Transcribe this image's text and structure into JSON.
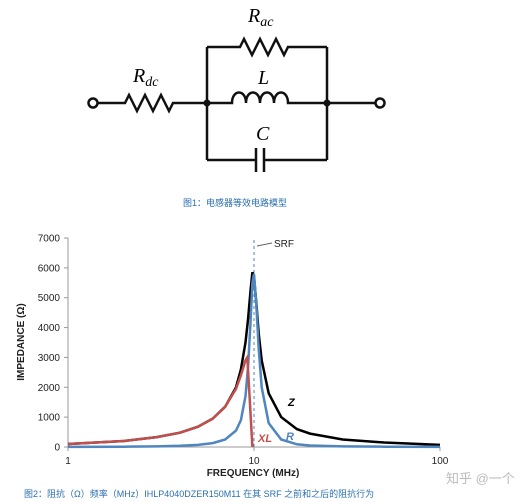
{
  "diagram": {
    "components": [
      {
        "symbol": "R",
        "subscript": "ac"
      },
      {
        "symbol": "R",
        "subscript": "dc"
      },
      {
        "symbol": "L"
      },
      {
        "symbol": "C"
      }
    ],
    "caption": "图1：电感器等效电路模型"
  },
  "chart_data": {
    "type": "line",
    "x_label": "FREQUENCY (MHz)",
    "y_label": "IMPEDANCE (Ω)",
    "xlim": [
      1,
      100
    ],
    "xticks": [
      1,
      10,
      100
    ],
    "x_log": true,
    "ylim": [
      0,
      7000
    ],
    "yticks": [
      0,
      1000,
      2000,
      3000,
      4000,
      5000,
      6000,
      7000
    ],
    "grid": false,
    "annotations": [
      {
        "text": "SRF",
        "x": 10
      }
    ],
    "series": [
      {
        "name": "Z",
        "color": "#000000",
        "x": [
          1,
          2,
          3,
          4,
          5,
          6,
          7,
          8,
          8.5,
          9,
          9.3,
          9.6,
          9.8,
          10,
          10.3,
          10.6,
          11,
          12,
          14,
          17,
          20,
          30,
          50,
          100
        ],
        "values": [
          100,
          200,
          330,
          480,
          680,
          950,
          1350,
          2000,
          2600,
          3500,
          4300,
          5300,
          5850,
          5700,
          4800,
          3800,
          2900,
          1800,
          1000,
          600,
          450,
          250,
          150,
          70
        ]
      },
      {
        "name": "R",
        "color": "#4f86c0",
        "x": [
          1,
          2,
          3,
          4,
          5,
          6,
          7,
          8,
          8.5,
          9,
          9.3,
          9.6,
          9.8,
          10,
          10.3,
          10.6,
          11,
          12,
          14,
          17,
          20,
          30,
          50,
          100
        ],
        "values": [
          5,
          10,
          20,
          40,
          70,
          130,
          250,
          550,
          900,
          1700,
          2700,
          4300,
          5500,
          5800,
          4700,
          3300,
          2000,
          800,
          250,
          90,
          50,
          20,
          10,
          5
        ]
      },
      {
        "name": "XL",
        "color": "#c0504d",
        "x": [
          1,
          2,
          3,
          4,
          5,
          6,
          7,
          8,
          8.5,
          9,
          9.2,
          9.5,
          9.8
        ],
        "values": [
          100,
          200,
          330,
          480,
          680,
          950,
          1350,
          1950,
          2400,
          2900,
          3000,
          1500,
          0
        ]
      }
    ]
  },
  "caption": "图2：阻抗（Ω）频率（MHz）IHLP4040DZER150M11 在其 SRF 之前和之后的阻抗行为",
  "watermark": "知乎 @一个"
}
